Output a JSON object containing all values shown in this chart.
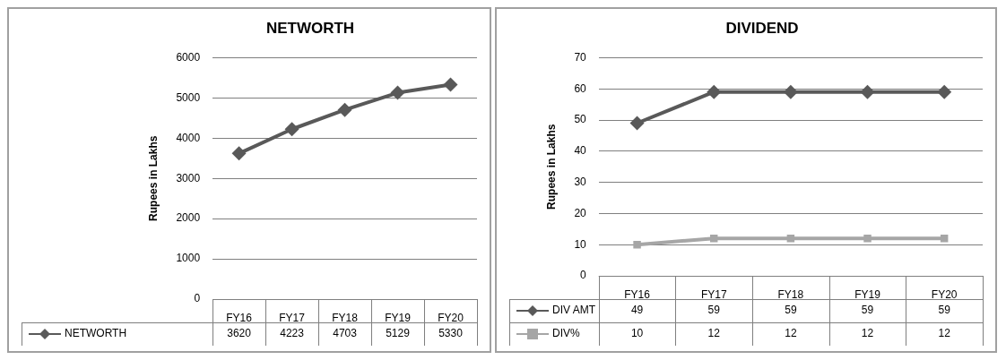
{
  "chart_data": [
    {
      "type": "line",
      "title": "NETWORTH",
      "ylabel": "Rupees in Lakhs",
      "categories": [
        "FY16",
        "FY17",
        "FY18",
        "FY19",
        "FY20"
      ],
      "series": [
        {
          "name": "NETWORTH",
          "color": "#595959",
          "marker": "diamond",
          "values": [
            3620,
            4223,
            4703,
            5129,
            5330
          ]
        }
      ],
      "ylim": [
        0,
        6000
      ],
      "yticks": [
        0,
        1000,
        2000,
        3000,
        4000,
        5000,
        6000
      ],
      "grid": "y",
      "legend": "bottom left",
      "data_labels": true
    },
    {
      "type": "line",
      "title": "DIVIDEND",
      "ylabel": "Rupees in Lakhs",
      "categories": [
        "FY16",
        "FY17",
        "FY18",
        "FY19",
        "FY20"
      ],
      "series": [
        {
          "name": "DIV AMT",
          "color": "#595959",
          "marker": "diamond",
          "values": [
            49,
            59,
            59,
            59,
            59
          ]
        },
        {
          "name": "DIV%",
          "color": "#a6a6a6",
          "marker": "square",
          "values": [
            10,
            12,
            12,
            12,
            12
          ]
        }
      ],
      "ylim": [
        0,
        70
      ],
      "yticks": [
        0,
        10,
        20,
        30,
        40,
        50,
        60,
        70
      ],
      "grid": "y",
      "legend": "bottom left",
      "data_labels": true
    }
  ]
}
